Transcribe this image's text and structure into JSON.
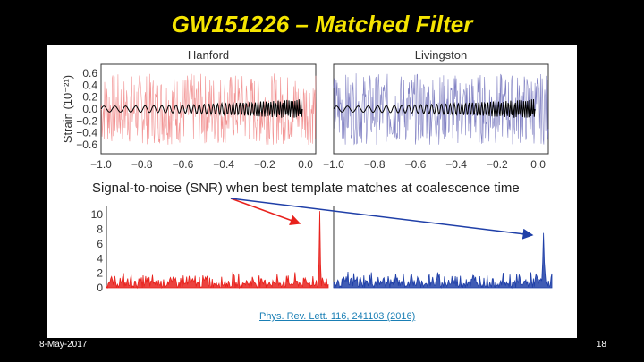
{
  "slide": {
    "title": "GW151226 – Matched Filter",
    "date": "8-May-2017",
    "page_number": "18"
  },
  "figure": {
    "snr_heading": "Signal-to-noise (SNR) when best template matches at coalescence time",
    "citation": "Phys. Rev. Lett. 116, 241103 (2016)"
  },
  "chart_data": [
    {
      "type": "line",
      "title": "Hanford",
      "ylabel": "Strain (10⁻²¹)",
      "xlim": [
        -1.0,
        0.05
      ],
      "ylim": [
        -0.75,
        0.75
      ],
      "xticks": [
        "−1.0",
        "−0.8",
        "−0.6",
        "−0.4",
        "−0.2",
        "0.0"
      ],
      "yticks": [
        "0.6",
        "0.4",
        "0.2",
        "0.0",
        "−0.2",
        "−0.4",
        "−0.6"
      ],
      "color": "#f08080",
      "template_color": "#000000",
      "noise_amplitude": 0.6
    },
    {
      "type": "line",
      "title": "Livingston",
      "xlim": [
        -1.0,
        0.05
      ],
      "ylim": [
        -0.75,
        0.75
      ],
      "xticks": [
        "−1.0",
        "−0.8",
        "−0.6",
        "−0.4",
        "−0.2",
        "0.0"
      ],
      "color": "#6b6bb8",
      "template_color": "#000000",
      "noise_amplitude": 0.6
    },
    {
      "type": "line",
      "ylim": [
        0,
        11
      ],
      "yticks": [
        "10",
        "8",
        "6",
        "4",
        "2",
        "0"
      ],
      "color": "#e8211c",
      "noise_level": 1.5,
      "peak_value": 10.5,
      "peak_x_fraction": 0.96
    },
    {
      "type": "line",
      "ylim": [
        0,
        11
      ],
      "color": "#1f3fa8",
      "noise_level": 1.6,
      "peak_value": 7.5,
      "peak_x_fraction": 0.96
    }
  ]
}
